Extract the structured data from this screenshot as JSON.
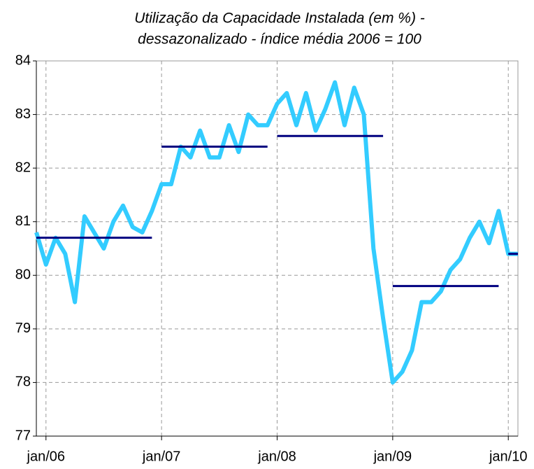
{
  "chart_data": {
    "type": "line",
    "title": [
      "Utilização da Capacidade Instalada (em %) -",
      "dessazonalizado - índice média 2006 = 100"
    ],
    "categories": [
      null,
      "jan/06",
      null,
      null,
      null,
      null,
      null,
      null,
      null,
      null,
      null,
      null,
      null,
      "jan/07",
      null,
      null,
      null,
      null,
      null,
      null,
      null,
      null,
      null,
      null,
      null,
      "jan/08",
      null,
      null,
      null,
      null,
      null,
      null,
      null,
      null,
      null,
      null,
      null,
      "jan/09",
      null,
      null,
      null,
      null,
      null,
      null,
      null,
      null,
      null,
      null,
      null,
      "jan/10",
      null
    ],
    "series": [
      {
        "color": "#33ccff",
        "width": 6,
        "values": [
          80.8,
          80.2,
          80.7,
          80.4,
          79.5,
          81.1,
          80.8,
          80.5,
          81.0,
          81.3,
          80.9,
          80.8,
          81.2,
          81.7,
          81.7,
          82.4,
          82.2,
          82.7,
          82.2,
          82.2,
          82.8,
          82.3,
          83.0,
          82.8,
          82.8,
          83.2,
          83.4,
          82.8,
          83.4,
          82.7,
          83.1,
          83.6,
          82.8,
          83.5,
          83.0,
          80.5,
          79.2,
          78.0,
          78.2,
          78.6,
          79.5,
          79.5,
          79.7,
          80.1,
          80.3,
          80.7,
          81.0,
          80.6,
          81.2,
          80.4,
          80.4
        ]
      },
      {
        "color": "#000080",
        "width": 3,
        "values": [
          80.7,
          80.7,
          80.7,
          80.7,
          80.7,
          80.7,
          80.7,
          80.7,
          80.7,
          80.7,
          80.7,
          80.7,
          80.7,
          null,
          null,
          null,
          null,
          null,
          null,
          null,
          null,
          null,
          null,
          null,
          null,
          null,
          null,
          null,
          null,
          null,
          null,
          null,
          null,
          null,
          null,
          null,
          null,
          null,
          null,
          null,
          null,
          null,
          null,
          null,
          null,
          null,
          null,
          null,
          null,
          null,
          null
        ]
      },
      {
        "color": "#000080",
        "width": 3,
        "values": [
          null,
          null,
          null,
          null,
          null,
          null,
          null,
          null,
          null,
          null,
          null,
          null,
          null,
          82.4,
          82.4,
          82.4,
          82.4,
          82.4,
          82.4,
          82.4,
          82.4,
          82.4,
          82.4,
          82.4,
          82.4,
          null,
          null,
          null,
          null,
          null,
          null,
          null,
          null,
          null,
          null,
          null,
          null,
          null,
          null,
          null,
          null,
          null,
          null,
          null,
          null,
          null,
          null,
          null,
          null,
          null,
          null
        ]
      },
      {
        "color": "#000080",
        "width": 3,
        "values": [
          null,
          null,
          null,
          null,
          null,
          null,
          null,
          null,
          null,
          null,
          null,
          null,
          null,
          null,
          null,
          null,
          null,
          null,
          null,
          null,
          null,
          null,
          null,
          null,
          null,
          82.6,
          82.6,
          82.6,
          82.6,
          82.6,
          82.6,
          82.6,
          82.6,
          82.6,
          82.6,
          82.6,
          82.6,
          null,
          null,
          null,
          null,
          null,
          null,
          null,
          null,
          null,
          null,
          null,
          null,
          null,
          null
        ]
      },
      {
        "color": "#000080",
        "width": 3,
        "values": [
          null,
          null,
          null,
          null,
          null,
          null,
          null,
          null,
          null,
          null,
          null,
          null,
          null,
          null,
          null,
          null,
          null,
          null,
          null,
          null,
          null,
          null,
          null,
          null,
          null,
          null,
          null,
          null,
          null,
          null,
          null,
          null,
          null,
          null,
          null,
          null,
          null,
          79.8,
          79.8,
          79.8,
          79.8,
          79.8,
          79.8,
          79.8,
          79.8,
          79.8,
          79.8,
          79.8,
          79.8,
          null,
          null
        ]
      },
      {
        "color": "#000080",
        "width": 3,
        "values": [
          null,
          null,
          null,
          null,
          null,
          null,
          null,
          null,
          null,
          null,
          null,
          null,
          null,
          null,
          null,
          null,
          null,
          null,
          null,
          null,
          null,
          null,
          null,
          null,
          null,
          null,
          null,
          null,
          null,
          null,
          null,
          null,
          null,
          null,
          null,
          null,
          null,
          null,
          null,
          null,
          null,
          null,
          null,
          null,
          null,
          null,
          null,
          null,
          null,
          80.4,
          80.4
        ]
      }
    ],
    "ylim": [
      77,
      84
    ],
    "yticks": [
      77,
      78,
      79,
      80,
      81,
      82,
      83,
      84
    ],
    "grid": true
  }
}
